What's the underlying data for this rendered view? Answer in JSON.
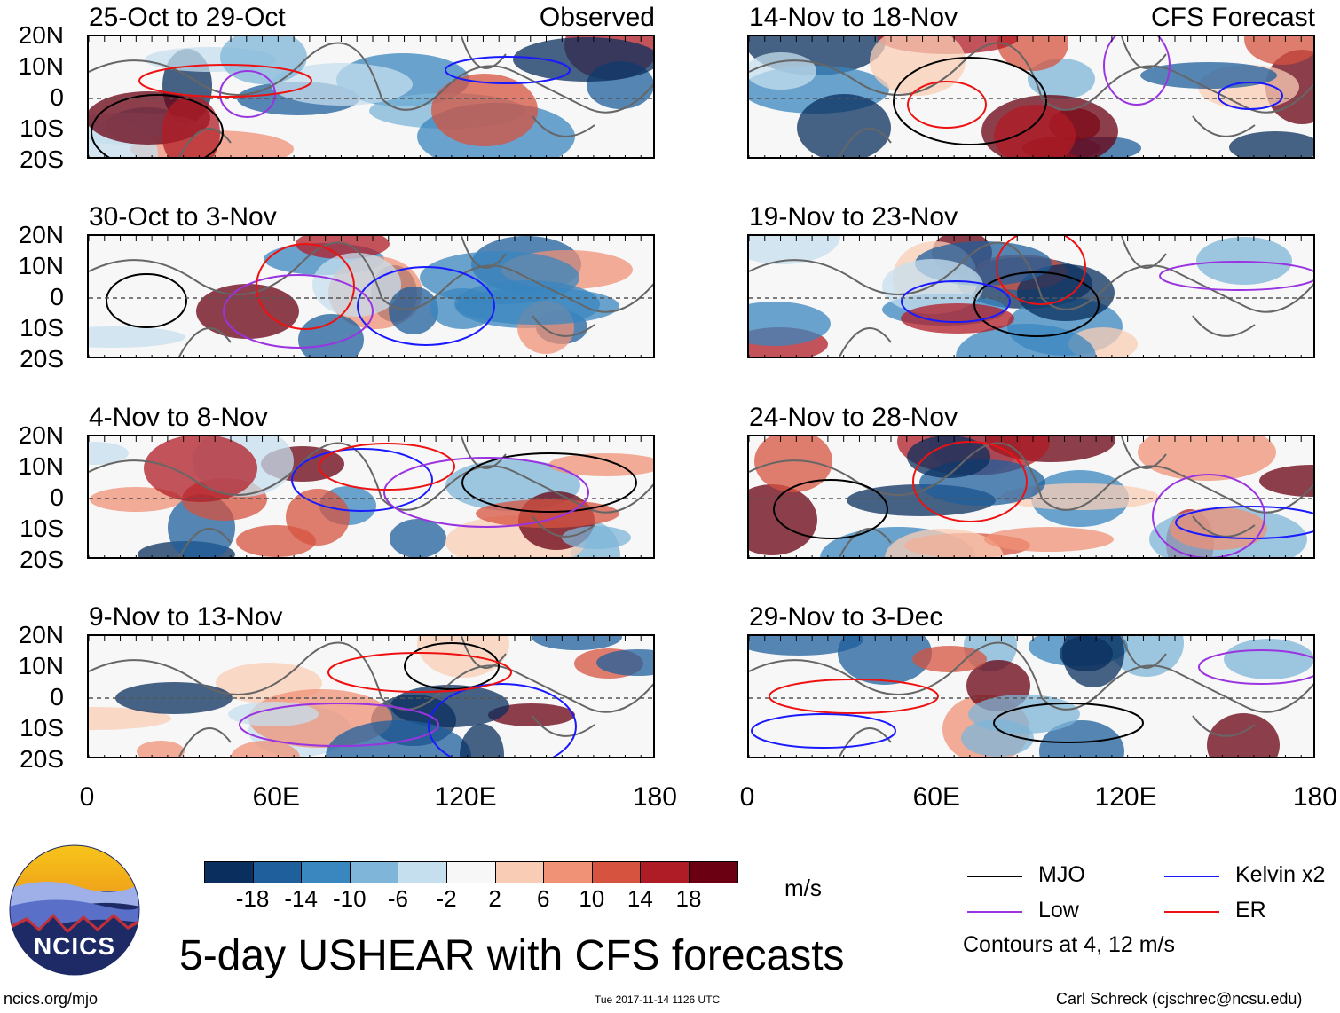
{
  "panels": [
    {
      "title": "25-Oct to 29-Oct",
      "tag": "Observed"
    },
    {
      "title": "30-Oct to 3-Nov",
      "tag": ""
    },
    {
      "title": "4-Nov to 8-Nov",
      "tag": ""
    },
    {
      "title": "9-Nov to 13-Nov",
      "tag": ""
    },
    {
      "title": "14-Nov to 18-Nov",
      "tag": "CFS Forecast"
    },
    {
      "title": "19-Nov to 23-Nov",
      "tag": ""
    },
    {
      "title": "24-Nov to 28-Nov",
      "tag": ""
    },
    {
      "title": "29-Nov to 3-Dec",
      "tag": ""
    }
  ],
  "lat_labels": [
    "20N",
    "10N",
    "0",
    "10S",
    "20S"
  ],
  "lon_labels": [
    "0",
    "60E",
    "120E",
    "180"
  ],
  "colorbar": {
    "labels": [
      "-18",
      "-14",
      "-10",
      "-6",
      "-2",
      "2",
      "6",
      "10",
      "14",
      "18"
    ],
    "units": "m/s",
    "colors": [
      "#0a2f5e",
      "#1e5f9c",
      "#3a86bf",
      "#7eb5d8",
      "#c6dfee",
      "#f7f7f7",
      "#f9cdb5",
      "#ef9275",
      "#d6533f",
      "#b01c26",
      "#6a0011"
    ]
  },
  "title": "5-day USHEAR with CFS forecasts",
  "logo": {
    "text": "NCICS"
  },
  "legend": {
    "mjo": "MJO",
    "kelvin": "Kelvin x2",
    "low": "Low",
    "er": "ER",
    "note": "Contours at 4, 12 m/s",
    "colors": {
      "mjo": "#000000",
      "kelvin": "#1a1aff",
      "low": "#9a33e0",
      "er": "#ee1111"
    }
  },
  "footer": {
    "url": "ncics.org/mjo",
    "timestamp": "Tue 2017-11-14 1126 UTC",
    "credit": "Carl Schreck (cjschrec@ncsu.edu)"
  }
}
